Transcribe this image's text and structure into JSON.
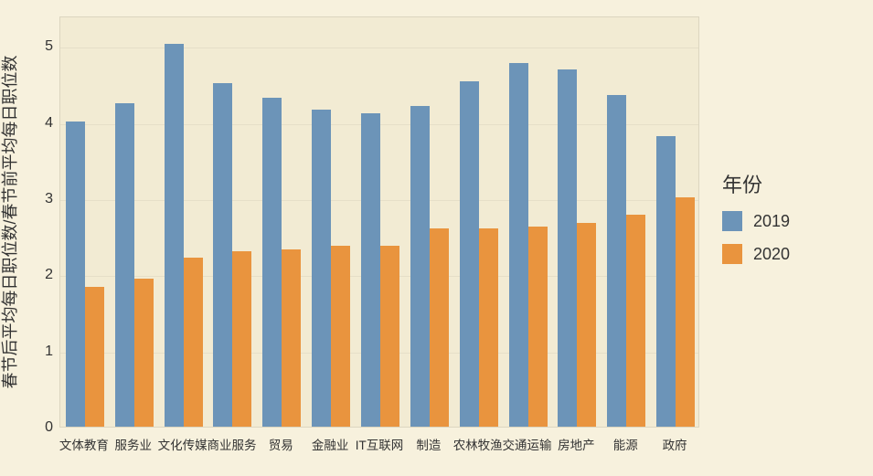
{
  "chart": {
    "type": "bar",
    "background_color": "#f7f1dd",
    "plot_background_color": "#f2ebd3",
    "grid_color": "#e6dfc8",
    "border_color": "#dcd6c0",
    "y_axis_title": "春节后平均每日职位数/春节前平均每日职位数",
    "y_axis_title_fontsize": 18,
    "y_ticks": [
      0,
      1,
      2,
      3,
      4,
      5
    ],
    "y_tick_fontsize": 16,
    "ylim_min": 0,
    "ylim_max": 5.4,
    "x_tick_fontsize": 13.5,
    "categories": [
      "文体教育",
      "服务业",
      "文化传媒",
      "商业服务",
      "贸易",
      "金融业",
      "IT互联网",
      "制造",
      "农林牧渔",
      "交通运输",
      "房地产",
      "能源",
      "政府"
    ],
    "legend": {
      "title": "年份",
      "title_fontsize": 22,
      "label_fontsize": 18,
      "items": [
        {
          "label": "2019",
          "color": "#6c94b8"
        },
        {
          "label": "2020",
          "color": "#e9943e"
        }
      ]
    },
    "series": [
      {
        "name": "2019",
        "color": "#6c94b8",
        "values": [
          4.01,
          4.25,
          5.03,
          4.51,
          4.32,
          4.16,
          4.12,
          4.21,
          4.54,
          4.78,
          4.69,
          4.36,
          3.82
        ]
      },
      {
        "name": "2020",
        "color": "#e9943e",
        "values": [
          1.84,
          1.94,
          2.22,
          2.31,
          2.33,
          2.38,
          2.38,
          2.61,
          2.61,
          2.63,
          2.68,
          2.78,
          3.01
        ]
      }
    ],
    "bar_group_width_ratio": 0.78,
    "bar_gap_ratio": 0.0,
    "text_color": "#333333"
  }
}
